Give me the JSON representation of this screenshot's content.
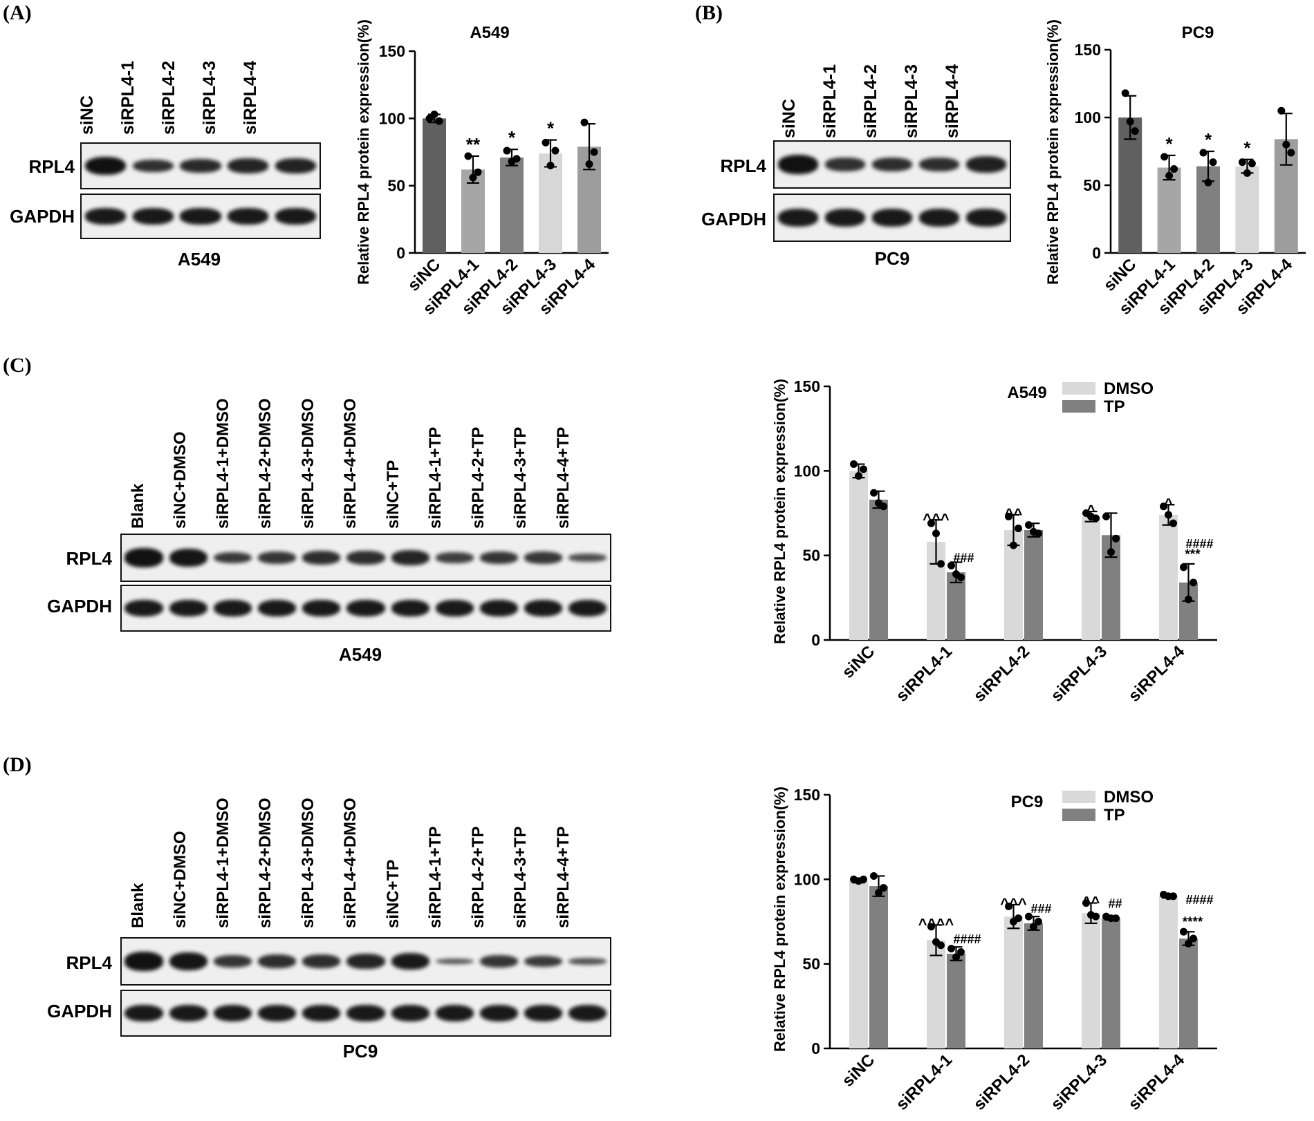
{
  "panel_labels": {
    "a": "(A)",
    "b": "(B)",
    "c": "(C)",
    "d": "(D)"
  },
  "blot_rows": {
    "rpl4": "RPL4",
    "gapdh": "GAPDH"
  },
  "blot_a": {
    "title": "A549",
    "lanes": [
      "siNC",
      "siRPL4-1",
      "siRPL4-2",
      "siRPL4-3",
      "siRPL4-4"
    ],
    "rpl4_intensity": [
      1.0,
      0.7,
      0.75,
      0.8,
      0.82
    ],
    "gapdh_intensity": [
      0.9,
      0.9,
      0.9,
      0.9,
      0.9
    ]
  },
  "blot_b": {
    "title": "PC9",
    "lanes": [
      "siNC",
      "siRPL4-1",
      "siRPL4-2",
      "siRPL4-3",
      "siRPL4-4"
    ],
    "rpl4_intensity": [
      1.0,
      0.7,
      0.72,
      0.72,
      0.85
    ],
    "gapdh_intensity": [
      0.92,
      0.92,
      0.92,
      0.92,
      0.92
    ]
  },
  "blot_c": {
    "title": "A549",
    "lanes": [
      "Blank",
      "siNC+DMSO",
      "siRPL4-1+DMSO",
      "siRPL4-2+DMSO",
      "siRPL4-3+DMSO",
      "siRPL4-4+DMSO",
      "siNC+TP",
      "siRPL4-1+TP",
      "siRPL4-2+TP",
      "siRPL4-3+TP",
      "siRPL4-4+TP"
    ],
    "rpl4_intensity": [
      1.0,
      0.95,
      0.6,
      0.65,
      0.72,
      0.72,
      0.8,
      0.55,
      0.65,
      0.62,
      0.4
    ],
    "gapdh_intensity": [
      0.92,
      0.92,
      0.92,
      0.92,
      0.92,
      0.92,
      0.92,
      0.92,
      0.92,
      0.92,
      0.92
    ]
  },
  "blot_d": {
    "title": "PC9",
    "lanes": [
      "Blank",
      "siNC+DMSO",
      "siRPL4-1+DMSO",
      "siRPL4-2+DMSO",
      "siRPL4-3+DMSO",
      "siRPL4-4+DMSO",
      "siNC+TP",
      "siRPL4-1+TP",
      "siRPL4-2+TP",
      "siRPL4-3+TP",
      "siRPL4-4+TP"
    ],
    "rpl4_intensity": [
      1.0,
      0.95,
      0.65,
      0.72,
      0.72,
      0.8,
      0.9,
      0.3,
      0.65,
      0.6,
      0.35
    ],
    "gapdh_intensity": [
      0.92,
      0.92,
      0.92,
      0.92,
      0.92,
      0.92,
      0.92,
      0.92,
      0.92,
      0.92,
      0.92
    ]
  },
  "chart_data": [
    {
      "id": "A",
      "type": "bar",
      "title": "A549",
      "ylabel": "Relative RPL4 protein expression(%)",
      "xlabel": "",
      "ylim": [
        0,
        150
      ],
      "yticks": [
        0,
        50,
        100,
        150
      ],
      "categories": [
        "siNC",
        "siRPL4-1",
        "siRPL4-2",
        "siRPL4-3",
        "siRPL4-4"
      ],
      "values": [
        100,
        62,
        71,
        74,
        79
      ],
      "errors": [
        3,
        10,
        6,
        10,
        17
      ],
      "points": [
        [
          100,
          103,
          98
        ],
        [
          72,
          56,
          60
        ],
        [
          76,
          68,
          70
        ],
        [
          82,
          65,
          76
        ],
        [
          97,
          66,
          75
        ]
      ],
      "colors": [
        "#606060",
        "#a6a6a6",
        "#808080",
        "#d7d7d7",
        "#9d9d9d"
      ],
      "annotations": [
        "",
        "**",
        "*",
        "*",
        ""
      ]
    },
    {
      "id": "B",
      "type": "bar",
      "title": "PC9",
      "ylabel": "Relative RPL4 protein expression(%)",
      "xlabel": "",
      "ylim": [
        0,
        150
      ],
      "yticks": [
        0,
        50,
        100,
        150
      ],
      "categories": [
        "siNC",
        "siRPL4-1",
        "siRPL4-2",
        "siRPL4-3",
        "siRPL4-4"
      ],
      "values": [
        100,
        63,
        64,
        64,
        84
      ],
      "errors": [
        16,
        9,
        11,
        5,
        19
      ],
      "points": [
        [
          118,
          97,
          90
        ],
        [
          71,
          57,
          62
        ],
        [
          74,
          52,
          67
        ],
        [
          67,
          59,
          66
        ],
        [
          105,
          80,
          74
        ]
      ],
      "colors": [
        "#606060",
        "#a6a6a6",
        "#808080",
        "#d7d7d7",
        "#9d9d9d"
      ],
      "annotations": [
        "",
        "*",
        "*",
        "*",
        ""
      ]
    },
    {
      "id": "C",
      "type": "bar",
      "title": "A549",
      "ylabel": "Relative RPL4 protein expression(%)",
      "xlabel": "",
      "ylim": [
        0,
        150
      ],
      "yticks": [
        0,
        50,
        100,
        150
      ],
      "categories": [
        "siNC",
        "siRPL4-1",
        "siRPL4-2",
        "siRPL4-3",
        "siRPL4-4"
      ],
      "series": [
        {
          "name": "DMSO",
          "color": "#d9d9d9",
          "values": [
            100,
            58,
            65,
            73,
            74
          ],
          "errors": [
            4,
            13,
            9,
            3,
            6
          ],
          "points": [
            [
              104,
              97,
              101
            ],
            [
              69,
              63,
              45
            ],
            [
              73,
              56,
              66
            ],
            [
              75,
              73,
              72
            ],
            [
              79,
              74,
              69
            ]
          ],
          "annotations": [
            "",
            "^^^",
            "^^",
            "^",
            "^"
          ]
        },
        {
          "name": "TP",
          "color": "#808080",
          "values": [
            83,
            40,
            65,
            62,
            34
          ],
          "errors": [
            5,
            6,
            4,
            13,
            11
          ],
          "points": [
            [
              87,
              81,
              79
            ],
            [
              44,
              39,
              37
            ],
            [
              68,
              64,
              63
            ],
            [
              73,
              52,
              60
            ],
            [
              43,
              24,
              34
            ]
          ],
          "annotations": [
            "",
            "###",
            "",
            "",
            "####\n***"
          ]
        }
      ],
      "legend": "top-right"
    },
    {
      "id": "D",
      "type": "bar",
      "title": "PC9",
      "ylabel": "Relative RPL4 protein expression(%)",
      "xlabel": "",
      "ylim": [
        0,
        150
      ],
      "yticks": [
        0,
        50,
        100,
        150
      ],
      "categories": [
        "siNC",
        "siRPL4-1",
        "siRPL4-2",
        "siRPL4-3",
        "siRPL4-4"
      ],
      "series": [
        {
          "name": "DMSO",
          "color": "#d9d9d9",
          "values": [
            99,
            64,
            78,
            80,
            90
          ],
          "errors": [
            1,
            9,
            7,
            6,
            1
          ],
          "points": [
            [
              100,
              99,
              100
            ],
            [
              72,
              63,
              61
            ],
            [
              84,
              75,
              77
            ],
            [
              86,
              79,
              78
            ],
            [
              91,
              90,
              90
            ]
          ],
          "annotations": [
            "",
            "^^^^",
            "^^^",
            "^^",
            ""
          ]
        },
        {
          "name": "TP",
          "color": "#808080",
          "values": [
            96,
            56,
            74,
            77,
            65
          ],
          "errors": [
            6,
            4,
            4,
            1,
            4
          ],
          "points": [
            [
              102,
              92,
              95
            ],
            [
              59,
              54,
              57
            ],
            [
              78,
              72,
              75
            ],
            [
              78,
              77,
              77
            ],
            [
              69,
              62,
              65
            ]
          ],
          "annotations": [
            "",
            "####",
            "###",
            "##",
            "####\n****"
          ]
        }
      ],
      "legend": "top-right"
    }
  ]
}
